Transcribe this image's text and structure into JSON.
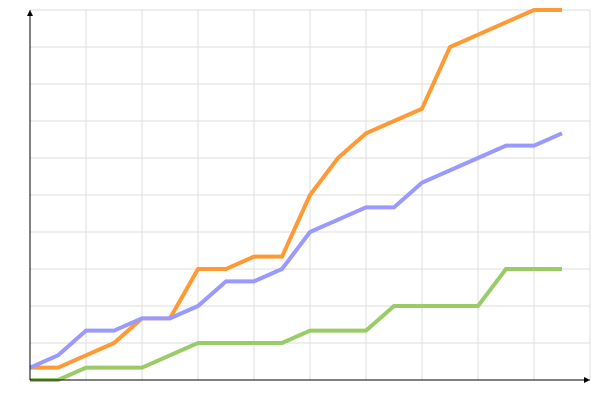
{
  "chart_data": {
    "type": "line",
    "title": "",
    "xlabel": "",
    "ylabel": "",
    "x": [
      1,
      2,
      3,
      4,
      5,
      6,
      7,
      8,
      9,
      10,
      11,
      12,
      13,
      14,
      15,
      16,
      17,
      18,
      19,
      20
    ],
    "xlim": [
      1,
      21
    ],
    "ylim": [
      0,
      30
    ],
    "grid": true,
    "legend": "none",
    "series": [
      {
        "color": "#ff9933",
        "values": [
          1,
          1,
          2,
          3,
          5,
          5,
          9,
          9,
          10,
          10,
          15,
          18,
          20,
          21,
          22,
          27,
          28,
          29,
          30,
          30
        ]
      },
      {
        "color": "#9999ff",
        "values": [
          1,
          2,
          4,
          4,
          5,
          5,
          6,
          8,
          8,
          9,
          12,
          13,
          14,
          14,
          16,
          17,
          18,
          19,
          19,
          20
        ]
      },
      {
        "color": "#99cc66",
        "values": [
          0,
          0,
          1,
          1,
          1,
          2,
          3,
          3,
          3,
          3,
          4,
          4,
          4,
          6,
          6,
          6,
          6,
          9,
          9,
          9
        ]
      }
    ]
  }
}
